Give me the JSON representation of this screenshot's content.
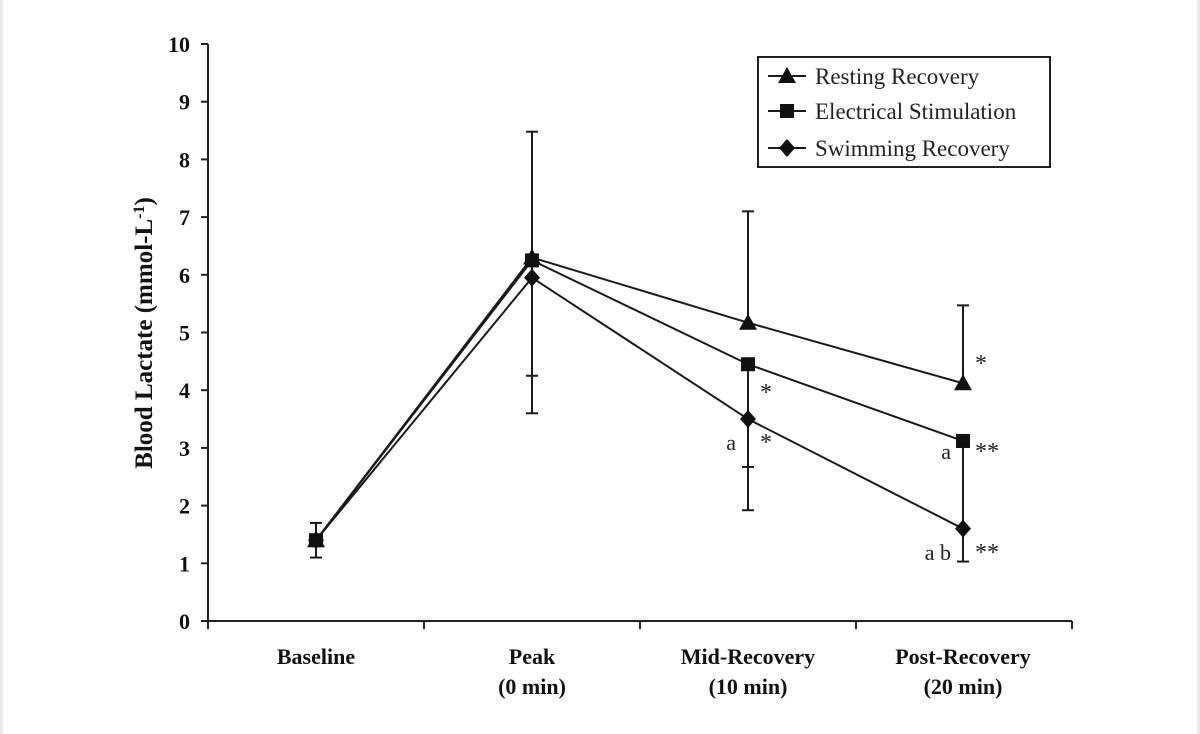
{
  "chart_data": {
    "type": "line",
    "title": "",
    "xlabel": "",
    "ylabel_main": "Blood Lactate (mmol-L",
    "ylabel_sup": "-1",
    "ylabel_close": ")",
    "ylim": [
      0,
      10
    ],
    "yticks": [
      "0",
      "1",
      "2",
      "3",
      "4",
      "5",
      "6",
      "7",
      "8",
      "9",
      "10"
    ],
    "categories": [
      {
        "line1": "Baseline",
        "line2": ""
      },
      {
        "line1": "Peak",
        "line2": "(0 min)"
      },
      {
        "line1": "Mid-Recovery",
        "line2": "(10 min)"
      },
      {
        "line1": "Post-Recovery",
        "line2": "(20 min)"
      }
    ],
    "series": [
      {
        "name": "Resting Recovery",
        "marker": "triangle",
        "values": [
          1.4,
          6.3,
          5.17,
          4.12
        ],
        "err_upper": [
          1.7,
          8.48,
          7.1,
          5.47
        ],
        "err_lower": [
          null,
          null,
          null,
          null
        ]
      },
      {
        "name": "Electrical Stimulation",
        "marker": "square",
        "values": [
          1.4,
          6.25,
          4.45,
          3.12
        ],
        "err_upper": [
          null,
          null,
          null,
          null
        ],
        "err_lower": [
          1.1,
          4.25,
          2.67,
          null
        ]
      },
      {
        "name": "Swimming Recovery",
        "marker": "diamond",
        "values": [
          1.4,
          5.95,
          3.5,
          1.6
        ],
        "err_upper": [
          null,
          null,
          null,
          3.1
        ],
        "err_lower": [
          null,
          3.6,
          1.92,
          1.03
        ]
      }
    ],
    "annotations": [
      {
        "text": "*",
        "category": 3,
        "value": 4.47,
        "side": "right"
      },
      {
        "text": "*",
        "category": 2,
        "value": 3.97,
        "side": "right"
      },
      {
        "text": "*",
        "category": 2,
        "value": 3.1,
        "side": "right"
      },
      {
        "text": "a",
        "category": 2,
        "value": 3.1,
        "side": "left"
      },
      {
        "text": "a",
        "category": 3,
        "value": 2.95,
        "side": "left"
      },
      {
        "text": "**",
        "category": 3,
        "value": 2.95,
        "side": "right"
      },
      {
        "text": "a b",
        "category": 3,
        "value": 1.2,
        "side": "left"
      },
      {
        "text": "**",
        "category": 3,
        "value": 1.2,
        "side": "right"
      }
    ],
    "legend_position": "top-right"
  }
}
